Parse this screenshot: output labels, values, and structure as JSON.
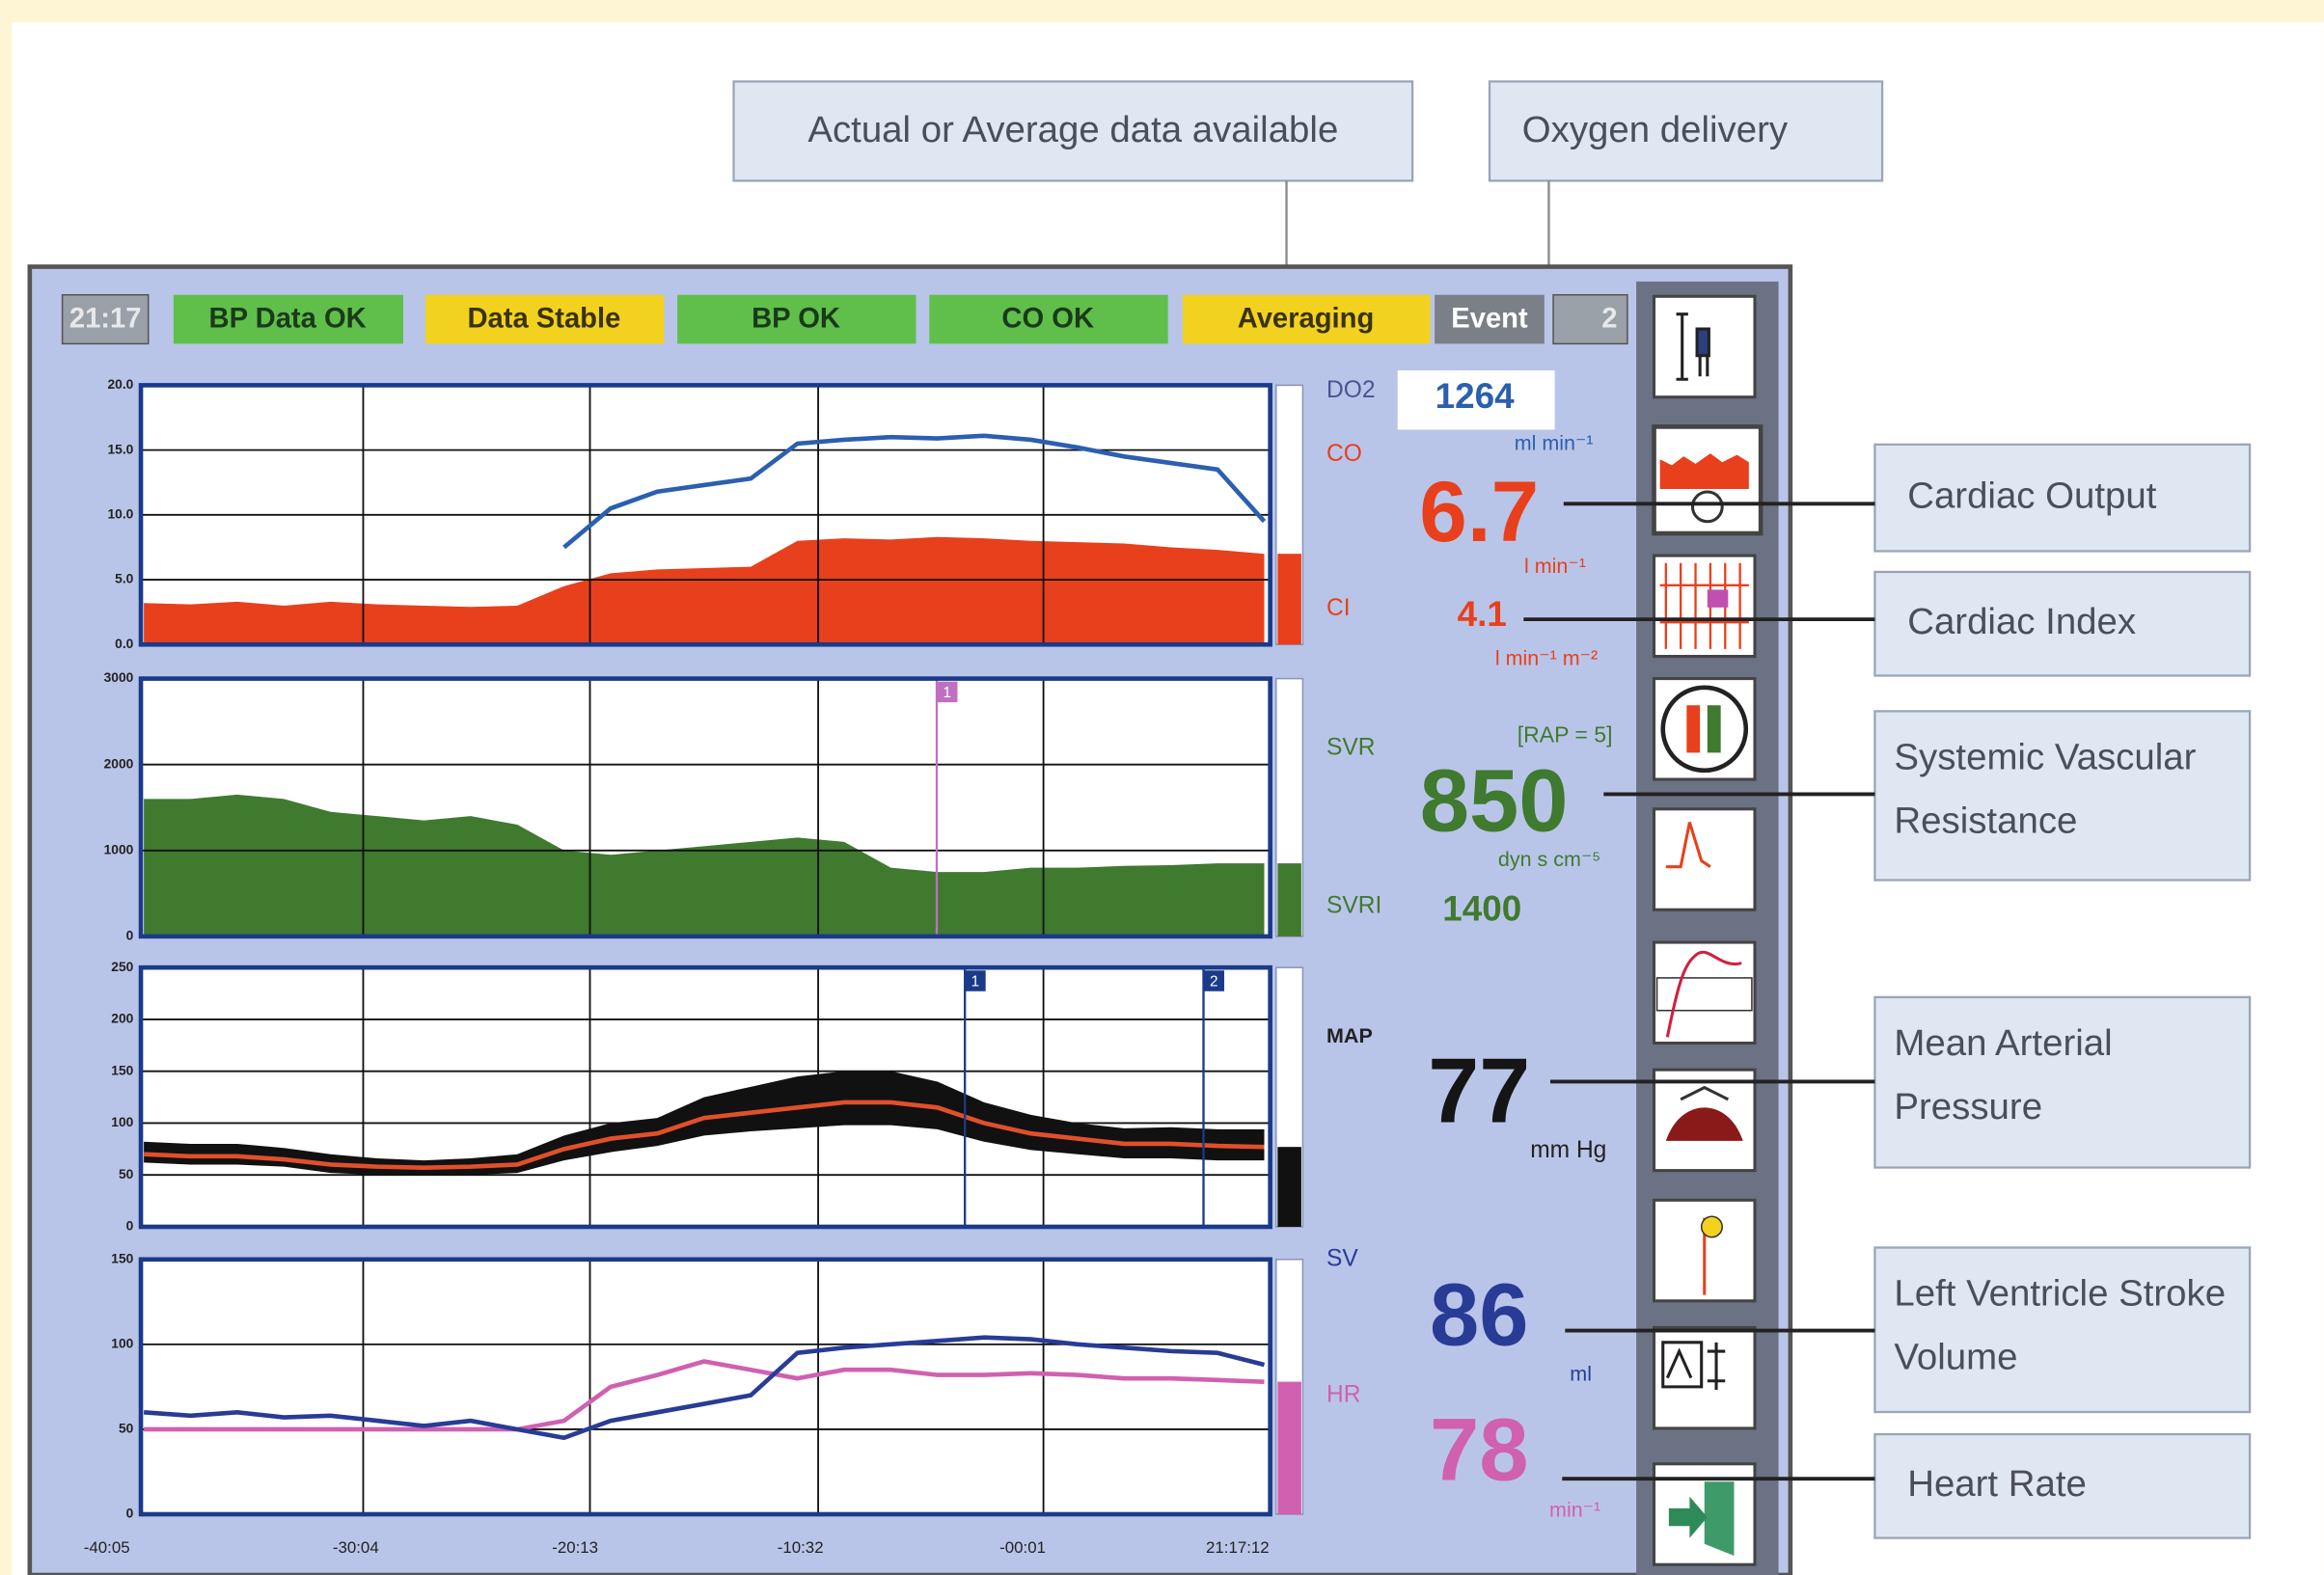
{
  "callouts": {
    "actual_average": "Actual or Average data available",
    "oxygen_delivery": "Oxygen delivery",
    "cardiac_output": "Cardiac Output",
    "cardiac_index": "Cardiac Index",
    "svr": "Systemic Vascular Resistance",
    "map": "Mean Arterial Pressure",
    "sv": "Left Ventricle Stroke Volume",
    "hr": "Heart Rate"
  },
  "status_bar": {
    "time": "21:17",
    "items": [
      "BP Data OK",
      "Data Stable",
      "BP OK",
      "CO OK",
      "Averaging"
    ],
    "event": "Event",
    "event_count": "2"
  },
  "readouts": {
    "do2": {
      "label": "DO2",
      "value": 1264,
      "unit": "ml min⁻¹"
    },
    "co": {
      "label": "CO",
      "value": 6.7,
      "unit": "l min⁻¹"
    },
    "ci": {
      "label": "CI",
      "value": 4.1,
      "unit": "l min⁻¹ m⁻²"
    },
    "svr": {
      "label": "SVR",
      "note": "[RAP = 5]",
      "value": 850,
      "unit": "dyn s cm⁻⁵"
    },
    "svri": {
      "label": "SVRI",
      "value": 1400
    },
    "map": {
      "label": "MAP",
      "value": 77,
      "unit": "mm Hg"
    },
    "sv": {
      "label": "SV",
      "value": 86,
      "unit": "ml"
    },
    "hr": {
      "label": "HR",
      "value": 78,
      "unit": "min⁻¹"
    }
  },
  "time_axis": {
    "labels": [
      "-40:05",
      "-30:04",
      "-20:13",
      "-10:32",
      "-00:01",
      "21:17:12"
    ]
  },
  "chart_data": [
    {
      "type": "area",
      "ylim": [
        0,
        20
      ],
      "yticks": [
        {
          "value": 0,
          "label": "0.0"
        },
        {
          "value": 5,
          "label": "5.0"
        },
        {
          "value": 10,
          "label": "10.0"
        },
        {
          "value": 15,
          "label": "15.0"
        },
        {
          "value": 20,
          "label": "20.0"
        }
      ],
      "grid": true,
      "series": [
        {
          "type": "area",
          "color": "#e8401c",
          "values": [
            3.2,
            3.1,
            3.3,
            3.0,
            3.3,
            3.1,
            3.0,
            2.9,
            3.0,
            4.5,
            5.5,
            5.8,
            5.9,
            6.0,
            8.0,
            8.2,
            8.1,
            8.3,
            8.2,
            8.0,
            7.9,
            7.8,
            7.5,
            7.3,
            7.0
          ]
        },
        {
          "type": "line",
          "color": "#2b5fb0",
          "values": [
            null,
            null,
            null,
            null,
            null,
            null,
            null,
            null,
            null,
            7.5,
            10.5,
            11.8,
            12.3,
            12.8,
            15.5,
            15.8,
            16.0,
            15.9,
            16.1,
            15.8,
            15.2,
            14.5,
            14.0,
            13.5,
            9.5
          ]
        }
      ]
    },
    {
      "type": "area",
      "ylim": [
        0,
        3000
      ],
      "yticks": [
        0,
        1000,
        2000,
        3000
      ],
      "grid": true,
      "event_labels": [
        "1"
      ],
      "series": [
        {
          "type": "area",
          "color": "#3f7a2f",
          "values": [
            1600,
            1600,
            1650,
            1600,
            1450,
            1400,
            1350,
            1400,
            1300,
            1000,
            950,
            1000,
            1050,
            1100,
            1150,
            1100,
            800,
            750,
            750,
            800,
            800,
            820,
            830,
            850,
            850
          ]
        }
      ]
    },
    {
      "type": "band",
      "ylim": [
        0,
        250
      ],
      "yticks": [
        0,
        50,
        100,
        150,
        200,
        250
      ],
      "grid": true,
      "event_labels": [
        "1",
        "2"
      ],
      "band": {
        "color": "#111111",
        "upper": [
          82,
          80,
          80,
          76,
          70,
          66,
          64,
          66,
          70,
          88,
          100,
          105,
          125,
          135,
          145,
          150,
          150,
          140,
          120,
          108,
          100,
          95,
          96,
          94,
          94
        ],
        "lower": [
          62,
          60,
          60,
          58,
          52,
          50,
          50,
          50,
          52,
          64,
          72,
          78,
          88,
          92,
          95,
          98,
          98,
          94,
          82,
          74,
          70,
          66,
          66,
          64,
          64
        ]
      },
      "series": [
        {
          "type": "line",
          "color": "#e0502a",
          "values": [
            70,
            68,
            68,
            65,
            60,
            58,
            57,
            58,
            60,
            75,
            85,
            90,
            105,
            110,
            115,
            120,
            120,
            115,
            100,
            90,
            85,
            80,
            80,
            78,
            77
          ]
        }
      ]
    },
    {
      "type": "line",
      "ylim": [
        0,
        150
      ],
      "yticks": [
        0,
        50,
        100,
        150
      ],
      "grid": true,
      "series": [
        {
          "type": "line",
          "color": "#d060b0",
          "values": [
            50,
            50,
            50,
            50,
            50,
            50,
            50,
            50,
            50,
            55,
            75,
            82,
            90,
            85,
            80,
            85,
            85,
            82,
            82,
            83,
            82,
            80,
            80,
            79,
            78
          ]
        },
        {
          "type": "line",
          "color": "#283c96",
          "values": [
            60,
            58,
            60,
            57,
            58,
            55,
            52,
            55,
            50,
            45,
            55,
            60,
            65,
            70,
            95,
            98,
            100,
            102,
            104,
            103,
            100,
            98,
            96,
            95,
            88
          ]
        }
      ]
    }
  ]
}
